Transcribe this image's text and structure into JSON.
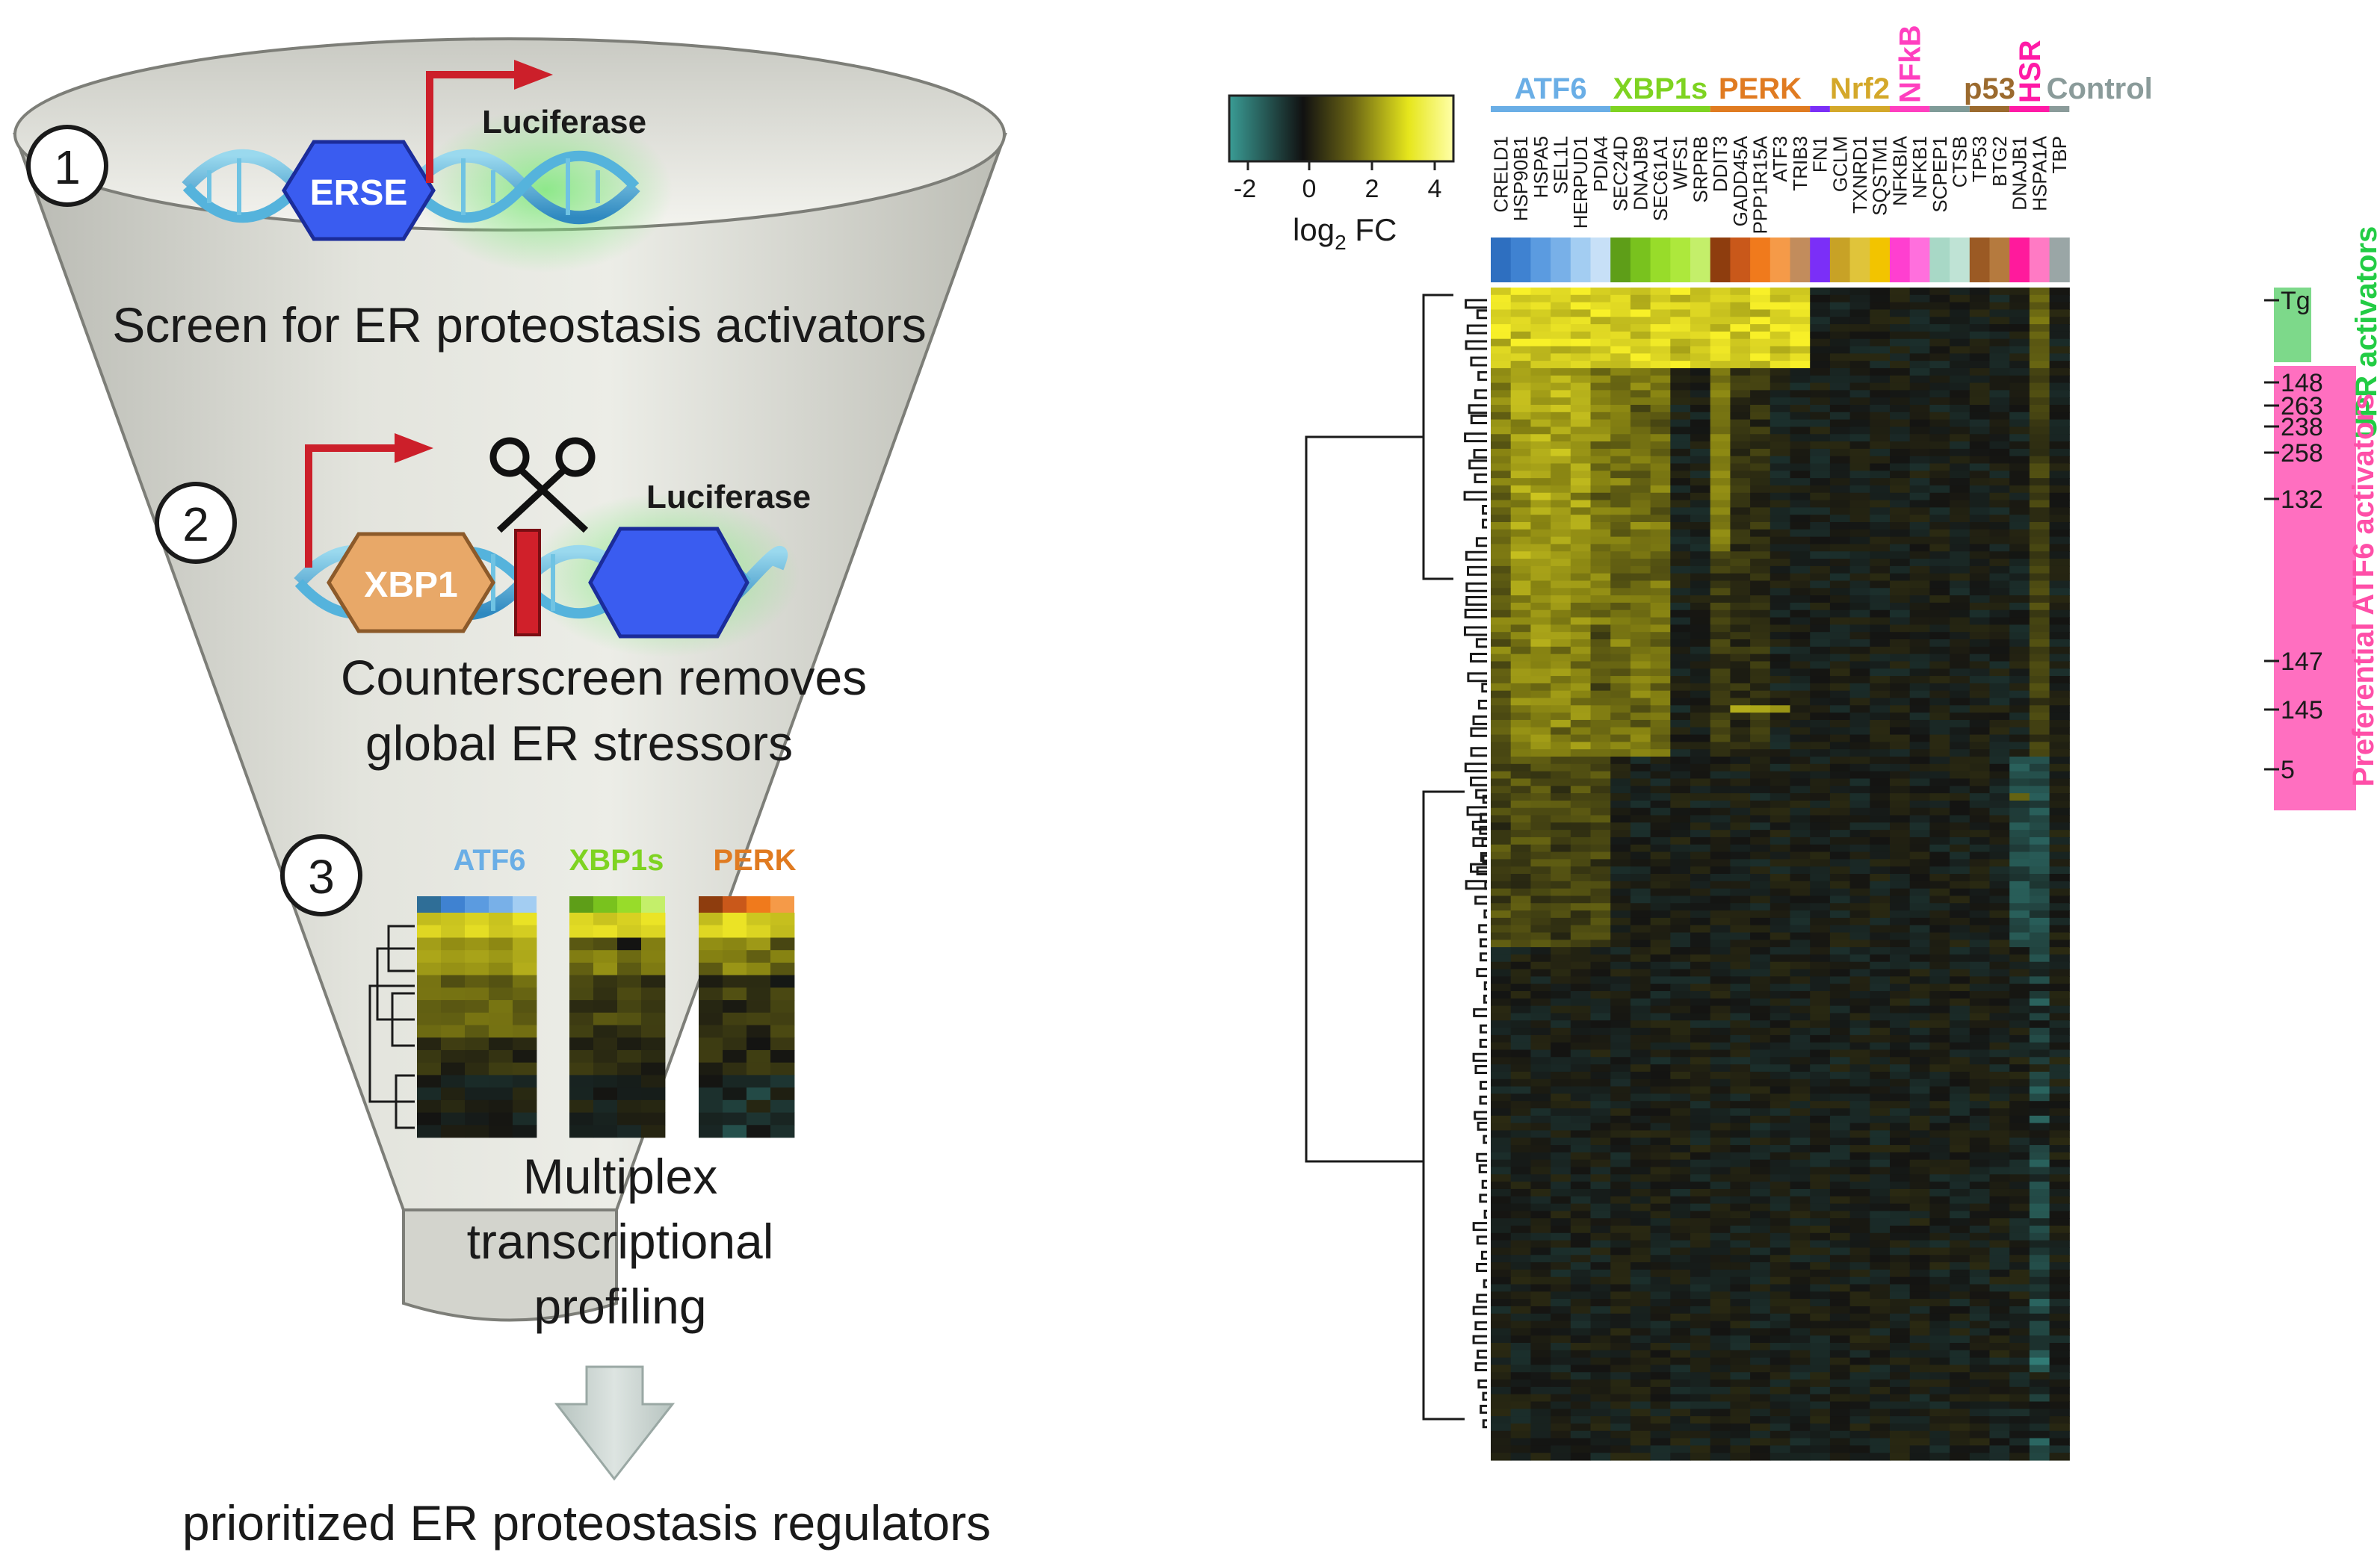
{
  "funnel": {
    "step1": {
      "number": "1",
      "element_label": "ERSE",
      "reporter_label": "Luciferase",
      "caption": "Screen for ER proteostasis activators"
    },
    "step2": {
      "number": "2",
      "element_label": "XBP1",
      "reporter_label": "Luciferase",
      "caption_line1": "Counterscreen removes",
      "caption_line2": "global ER stressors"
    },
    "step3": {
      "number": "3",
      "mini_labels": [
        "ATF6",
        "XBP1s",
        "PERK"
      ],
      "caption_line1": "Multiplex",
      "caption_line2": "transcriptional",
      "caption_line3": "profiling"
    },
    "output_label": "prioritized ER proteostasis regulators"
  },
  "colorbar": {
    "ticks": [
      "-2",
      "0",
      "2",
      "4"
    ],
    "label_main": "log",
    "label_sub": "2",
    "label_tail": " FC"
  },
  "heatmap": {
    "groups": [
      {
        "label": "ATF6",
        "color": "#6aaee6",
        "vertical": false
      },
      {
        "label": "XBP1s",
        "color": "#7ed321",
        "vertical": false
      },
      {
        "label": "PERK",
        "color": "#e07b21",
        "vertical": false
      },
      {
        "label": "",
        "color": "#7b2ff7",
        "vertical": false
      },
      {
        "label": "Nrf2",
        "color": "#d4a82a",
        "vertical": false
      },
      {
        "label": "NFkB",
        "color": "#ff3fbf",
        "vertical": true
      },
      {
        "label": "",
        "color": "#7f9b98",
        "vertical": false
      },
      {
        "label": "p53",
        "color": "#9b6a2e",
        "vertical": false
      },
      {
        "label": "HSR",
        "color": "#ff1aa6",
        "vertical": true
      },
      {
        "label": "Control",
        "color": "#8a9b9a",
        "vertical": false
      }
    ],
    "genes": [
      {
        "name": "CRELD1",
        "color": "#2e6fc0"
      },
      {
        "name": "HSP90B1",
        "color": "#3f82d1"
      },
      {
        "name": "HSPA5",
        "color": "#5b9be0"
      },
      {
        "name": "SEL1L",
        "color": "#78b0e8"
      },
      {
        "name": "HERPUD1",
        "color": "#a3cdf2"
      },
      {
        "name": "PDIA4",
        "color": "#c7e0f7"
      },
      {
        "name": "SEC24D",
        "color": "#5e9e18"
      },
      {
        "name": "DNAJB9",
        "color": "#79c21e"
      },
      {
        "name": "SEC61A1",
        "color": "#98dc2a"
      },
      {
        "name": "WFS1",
        "color": "#ade83c"
      },
      {
        "name": "SRPRB",
        "color": "#c4ef6a"
      },
      {
        "name": "DDIT3",
        "color": "#8e3d0e"
      },
      {
        "name": "GADD45A",
        "color": "#c9581a"
      },
      {
        "name": "PPP1R15A",
        "color": "#f07a1c"
      },
      {
        "name": "ATF3",
        "color": "#f59a48"
      },
      {
        "name": "TRIB3",
        "color": "#c28c5c"
      },
      {
        "name": "FN1",
        "color": "#7b2ff7"
      },
      {
        "name": "GCLM",
        "color": "#c8a226"
      },
      {
        "name": "TXNRD1",
        "color": "#e0c43a"
      },
      {
        "name": "SQSTM1",
        "color": "#f2c400"
      },
      {
        "name": "NFKBIA",
        "color": "#ff3fd0"
      },
      {
        "name": "NFKB1",
        "color": "#ff6fdd"
      },
      {
        "name": "SCPEP1",
        "color": "#a8d8c6"
      },
      {
        "name": "CTSB",
        "color": "#bfe3d5"
      },
      {
        "name": "TP53",
        "color": "#9b5a24"
      },
      {
        "name": "BTG2",
        "color": "#b57a3e"
      },
      {
        "name": "DNAJB1",
        "color": "#ff1a9c"
      },
      {
        "name": "HSPA1A",
        "color": "#ff7ac4"
      },
      {
        "name": "TBP",
        "color": "#9aa6a6"
      }
    ],
    "row_labels": [
      "Tg",
      "148",
      "263",
      "238",
      "258",
      "132",
      "147",
      "145",
      "5"
    ],
    "side_labels": {
      "upr": "UPR activators",
      "atf6": "Preferential ATF6 activators"
    }
  },
  "colors": {
    "upr_accent": "#22cc44",
    "atf6_accent": "#ff4fa8",
    "promoter_arrow": "#cc1f2a",
    "reporter_hex": "#3a5cf0",
    "xbp1_hex": "#e8a868"
  }
}
